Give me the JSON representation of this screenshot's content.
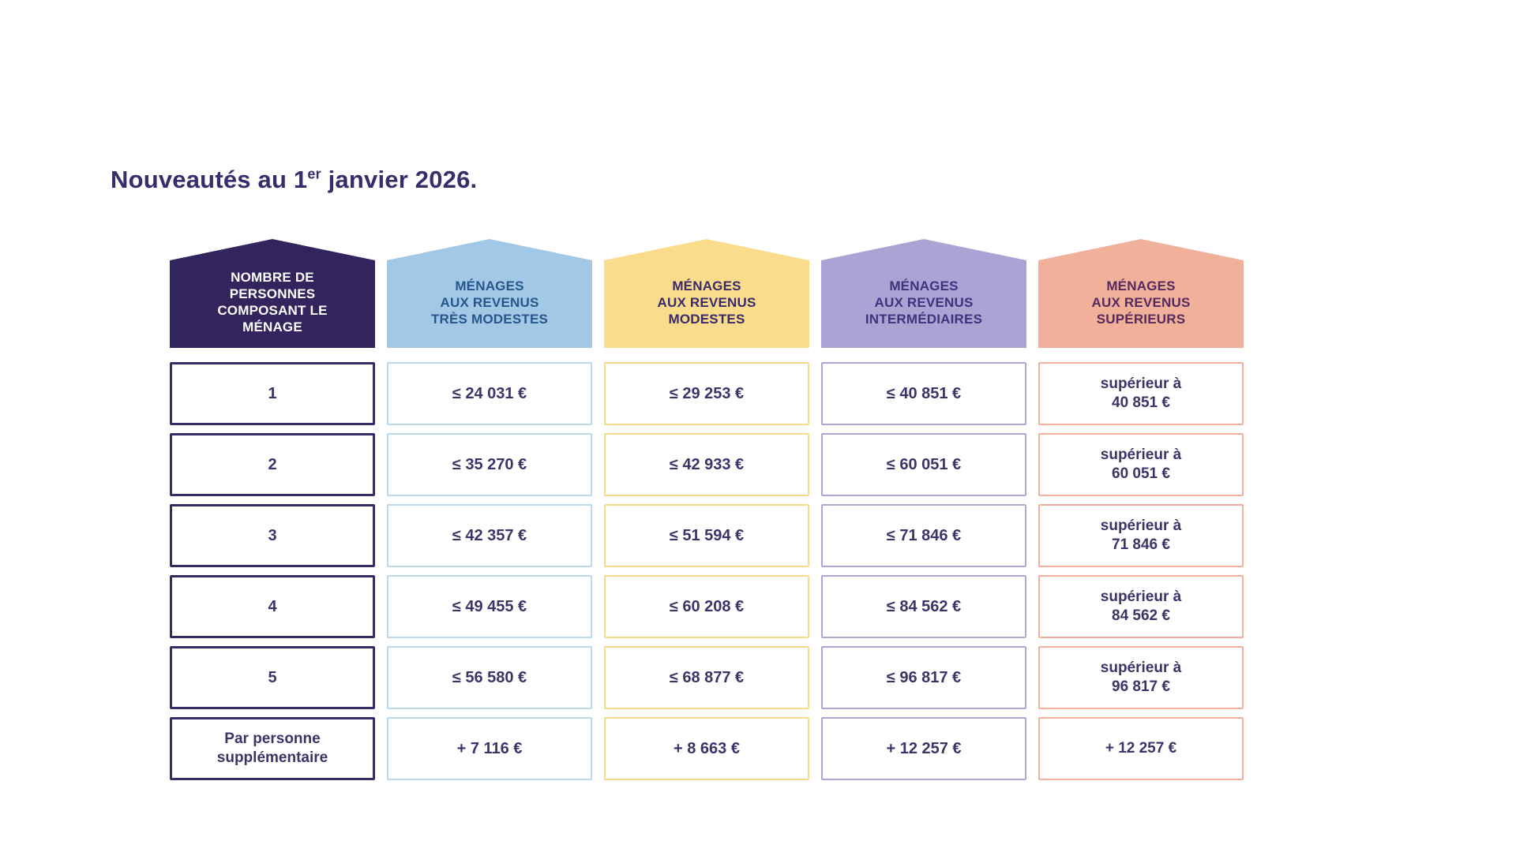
{
  "title": {
    "prefix": "Nouveautés au 1",
    "superscript": "er",
    "suffix": " janvier 2026."
  },
  "colors": {
    "title_text": "#352e6b",
    "cell_text": "#3c3468",
    "household_header_bg": "#32255e",
    "tres_modestes_header_bg": "#a3c8e5",
    "modestes_header_bg": "#fadc8d",
    "intermediaires_header_bg": "#aba3d4",
    "superieurs_header_bg": "#f0b099"
  },
  "table": {
    "headers": [
      {
        "id": "household-size",
        "lines": [
          "NOMBRE DE",
          "PERSONNES",
          "COMPOSANT LE",
          "MÉNAGE"
        ]
      },
      {
        "id": "revenus-tres-modestes",
        "lines": [
          "MÉNAGES",
          "AUX REVENUS",
          "TRÈS MODESTES"
        ]
      },
      {
        "id": "revenus-modestes",
        "lines": [
          "MÉNAGES",
          "AUX REVENUS",
          "MODESTES"
        ]
      },
      {
        "id": "revenus-intermediaires",
        "lines": [
          "MÉNAGES",
          "AUX REVENUS",
          "INTERMÉDIAIRES"
        ]
      },
      {
        "id": "revenus-superieurs",
        "lines": [
          "MÉNAGES",
          "AUX REVENUS",
          "SUPÉRIEURS"
        ]
      }
    ],
    "rows": [
      {
        "cells": [
          [
            "1"
          ],
          [
            "≤ 24 031 €"
          ],
          [
            "≤ 29 253 €"
          ],
          [
            "≤ 40 851 €"
          ],
          [
            "supérieur à",
            "40 851 €"
          ]
        ]
      },
      {
        "cells": [
          [
            "2"
          ],
          [
            "≤ 35 270 €"
          ],
          [
            "≤ 42 933 €"
          ],
          [
            "≤ 60 051 €"
          ],
          [
            "supérieur à",
            "60 051 €"
          ]
        ]
      },
      {
        "cells": [
          [
            "3"
          ],
          [
            "≤ 42 357 €"
          ],
          [
            "≤ 51 594 €"
          ],
          [
            "≤ 71 846 €"
          ],
          [
            "supérieur à",
            "71 846 €"
          ]
        ]
      },
      {
        "cells": [
          [
            "4"
          ],
          [
            "≤ 49 455 €"
          ],
          [
            "≤ 60 208 €"
          ],
          [
            "≤ 84 562 €"
          ],
          [
            "supérieur à",
            "84 562 €"
          ]
        ]
      },
      {
        "cells": [
          [
            "5"
          ],
          [
            "≤ 56 580 €"
          ],
          [
            "≤ 68 877 €"
          ],
          [
            "≤ 96 817 €"
          ],
          [
            "supérieur à",
            "96 817 €"
          ]
        ]
      },
      {
        "cells": [
          [
            "Par personne",
            "supplémentaire"
          ],
          [
            "+ 7 116 €"
          ],
          [
            "+ 8 663 €"
          ],
          [
            "+ 12 257 €"
          ],
          [
            "+ 12 257 €"
          ]
        ]
      }
    ]
  }
}
